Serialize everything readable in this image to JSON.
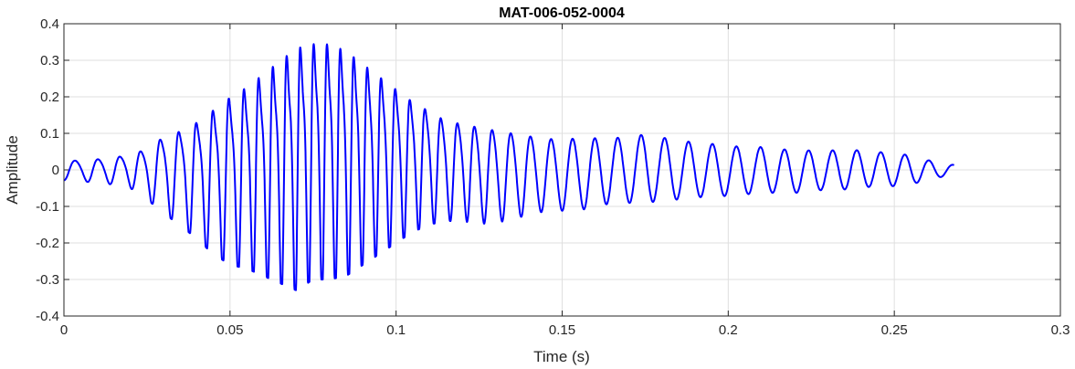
{
  "chart_data": {
    "type": "line",
    "title": "MAT-006-052-0004",
    "xlabel": "Time (s)",
    "ylabel": "Amplitude",
    "xlim": [
      0,
      0.3
    ],
    "ylim": [
      -0.4,
      0.4
    ],
    "xticks": [
      0,
      0.05,
      0.1,
      0.15,
      0.2,
      0.25,
      0.3
    ],
    "xtick_labels": [
      "0",
      "0.05",
      "0.1",
      "0.15",
      "0.2",
      "0.25",
      "0.3"
    ],
    "yticks": [
      -0.4,
      -0.3,
      -0.2,
      -0.1,
      0,
      0.1,
      0.2,
      0.3,
      0.4
    ],
    "ytick_labels": [
      "-0.4",
      "-0.3",
      "-0.2",
      "-0.1",
      "0",
      "0.1",
      "0.2",
      "0.3",
      "0.4"
    ],
    "grid": true,
    "line_color": "#0000ff",
    "series": [
      {
        "x": [
          0,
          0.005,
          0.01,
          0.015,
          0.02,
          0.025,
          0.03,
          0.035,
          0.04,
          0.045,
          0.05,
          0.055,
          0.06,
          0.065,
          0.07,
          0.075,
          0.08,
          0.085,
          0.09,
          0.095,
          0.1,
          0.105,
          0.11,
          0.115,
          0.12,
          0.125,
          0.13,
          0.135,
          0.14,
          0.145,
          0.15,
          0.155,
          0.16,
          0.165,
          0.17,
          0.175,
          0.18,
          0.185,
          0.19,
          0.195,
          0.2,
          0.205,
          0.21,
          0.215,
          0.22,
          0.225,
          0.23,
          0.235,
          0.24,
          0.245,
          0.25,
          0.255,
          0.26,
          0.265,
          0.268
        ],
        "y_upper": [
          0.03,
          0.03,
          0.035,
          0.04,
          0.05,
          0.07,
          0.11,
          0.13,
          0.16,
          0.2,
          0.24,
          0.27,
          0.31,
          0.35,
          0.39,
          0.4,
          0.4,
          0.38,
          0.34,
          0.3,
          0.26,
          0.22,
          0.19,
          0.16,
          0.15,
          0.14,
          0.13,
          0.12,
          0.11,
          0.1,
          0.1,
          0.1,
          0.1,
          0.1,
          0.1,
          0.11,
          0.1,
          0.09,
          0.085,
          0.08,
          0.075,
          0.07,
          0.07,
          0.065,
          0.06,
          0.06,
          0.06,
          0.06,
          0.06,
          0.055,
          0.05,
          0.045,
          0.03,
          0.02,
          0.015
        ],
        "y_lower": [
          -0.03,
          -0.03,
          -0.04,
          -0.04,
          -0.05,
          -0.08,
          -0.12,
          -0.15,
          -0.19,
          -0.23,
          -0.26,
          -0.27,
          -0.29,
          -0.31,
          -0.33,
          -0.3,
          -0.3,
          -0.29,
          -0.26,
          -0.23,
          -0.2,
          -0.17,
          -0.15,
          -0.14,
          -0.14,
          -0.15,
          -0.15,
          -0.14,
          -0.13,
          -0.12,
          -0.12,
          -0.12,
          -0.11,
          -0.1,
          -0.1,
          -0.1,
          -0.095,
          -0.09,
          -0.085,
          -0.08,
          -0.08,
          -0.075,
          -0.07,
          -0.07,
          -0.07,
          -0.065,
          -0.06,
          -0.06,
          -0.055,
          -0.05,
          -0.05,
          -0.045,
          -0.03,
          -0.02,
          -0.015
        ]
      }
    ]
  }
}
